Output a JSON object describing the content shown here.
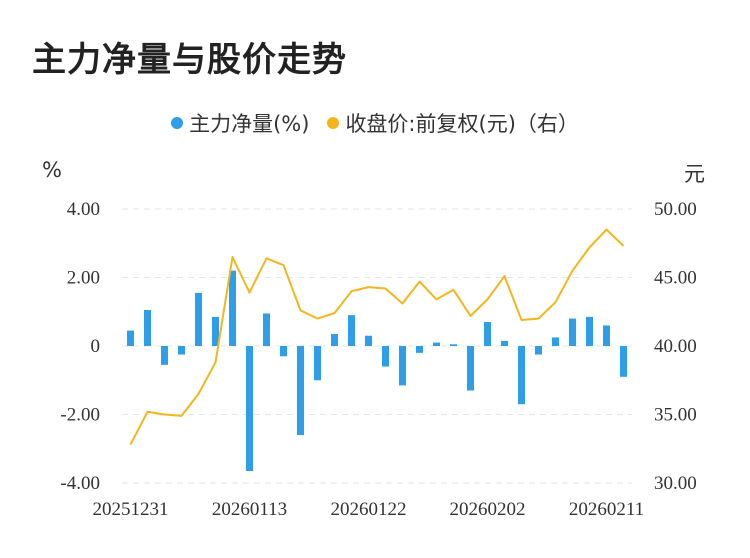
{
  "chart_data": {
    "type": "bar+line",
    "title": "主力净量与股价走势",
    "legend": {
      "placement": "top-center",
      "items": [
        {
          "name": "主力净量(%)",
          "color": "#2f9ee8"
        },
        {
          "name": "收盘价:前复权(元)（右）",
          "color": "#f5b51c"
        }
      ]
    },
    "left_axis": {
      "unit": "%",
      "ticks": [
        "4.00",
        "2.00",
        "0",
        "-2.00",
        "-4.00"
      ],
      "ylim": [
        -4,
        4
      ]
    },
    "right_axis": {
      "unit": "元",
      "ticks": [
        "50.00",
        "45.00",
        "40.00",
        "35.00",
        "30.00"
      ],
      "ylim": [
        30,
        50
      ]
    },
    "x_ticks": [
      "20251231",
      "20260113",
      "20260122",
      "20260202",
      "20260211"
    ],
    "x_tick_indices": [
      0,
      7,
      14,
      21,
      28
    ],
    "grid": "horizontal dashed",
    "series": [
      {
        "name": "主力净量(%)",
        "type": "bar",
        "axis": "left",
        "color": "#2f9ee8",
        "values": [
          0.45,
          1.05,
          -0.55,
          -0.25,
          1.55,
          0.85,
          2.2,
          -3.65,
          0.95,
          -0.3,
          -2.6,
          -1.0,
          0.35,
          0.9,
          0.3,
          -0.6,
          -1.15,
          -0.2,
          0.1,
          0.05,
          -1.3,
          0.7,
          0.15,
          -1.7,
          -0.25,
          0.25,
          0.8,
          0.85,
          0.6,
          -0.9
        ]
      },
      {
        "name": "收盘价:前复权(元)（右）",
        "type": "line",
        "axis": "right",
        "color": "#f5b51c",
        "values": [
          32.8,
          35.2,
          35.0,
          34.9,
          36.5,
          38.8,
          46.5,
          43.9,
          46.4,
          45.9,
          42.6,
          42.0,
          42.4,
          44.0,
          44.3,
          44.2,
          43.1,
          44.7,
          43.4,
          44.1,
          42.2,
          43.4,
          45.1,
          41.9,
          42.0,
          43.2,
          45.5,
          47.2,
          48.5,
          47.3
        ]
      }
    ]
  }
}
